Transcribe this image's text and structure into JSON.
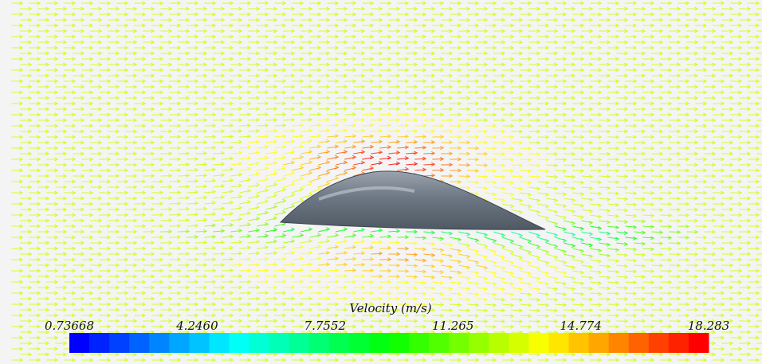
{
  "colorbar": {
    "title": "Velocity (m/s)",
    "labels": [
      "0.73668",
      "4.2460",
      "7.7552",
      "11.265",
      "14.774",
      "18.283"
    ]
  }
}
